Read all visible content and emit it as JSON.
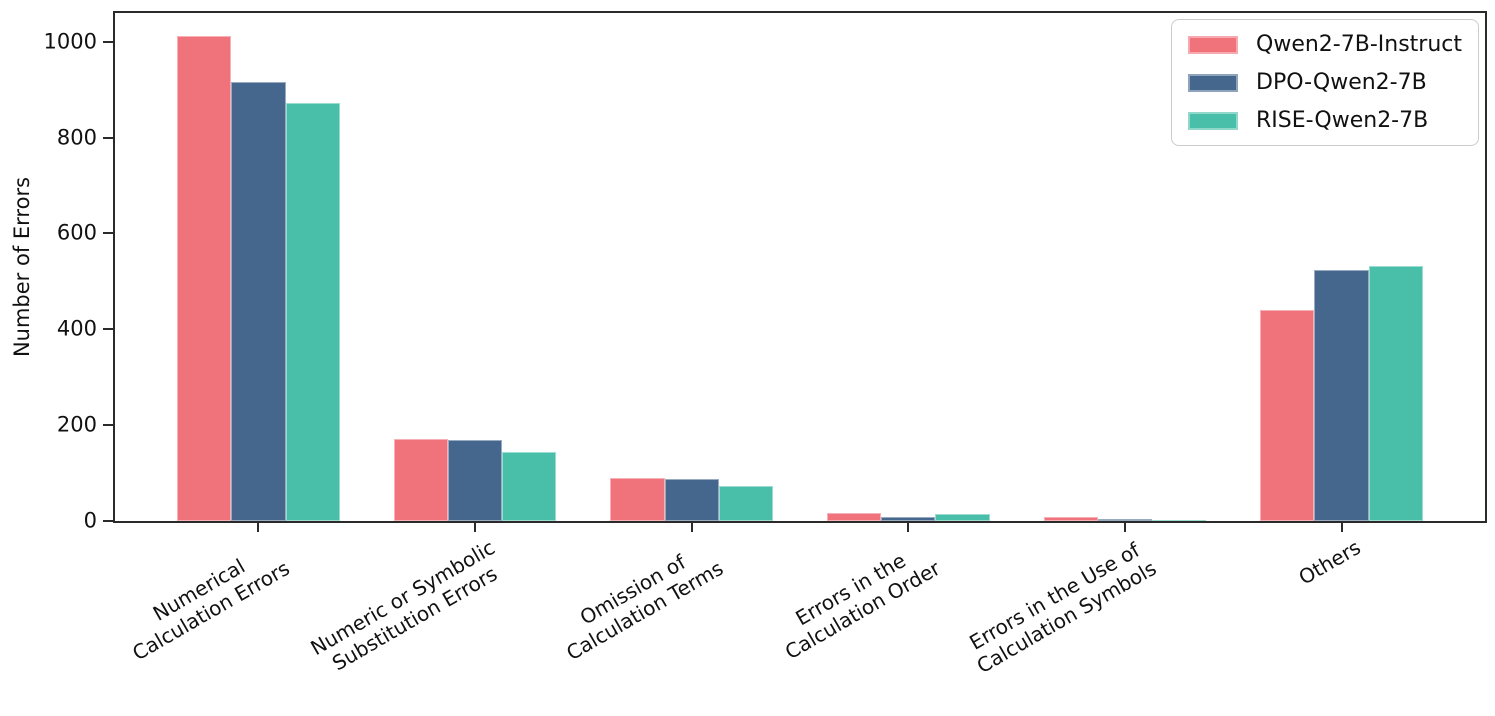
{
  "figure": {
    "background": "#ffffff",
    "axis_color": "#2a2a2a",
    "text_color": "#111111"
  },
  "legend": {
    "position": "upper-right",
    "items": [
      {
        "label": "Qwen2-7B-Instruct",
        "color": "#f0727b",
        "swatch_name": "qwen2-7b-instruct-swatch"
      },
      {
        "label": "DPO-Qwen2-7B",
        "color": "#45678e",
        "swatch_name": "dpo-qwen2-7b-swatch"
      },
      {
        "label": "RISE-Qwen2-7B",
        "color": "#49bfa9",
        "swatch_name": "rise-qwen2-7b-swatch"
      }
    ]
  },
  "chart_data": {
    "type": "bar",
    "title": "",
    "xlabel": "",
    "ylabel": "Number of Errors",
    "categories": [
      "Numerical\nCalculation Errors",
      "Numeric or Symbolic\nSubstitution Errors",
      "Omission of\nCalculation Terms",
      "Errors in the\nCalculation Order",
      "Errors in the Use of\nCalculation Symbols",
      "Others"
    ],
    "series": [
      {
        "name": "Qwen2-7B-Instruct",
        "color": "#f0727b",
        "values": [
          1013,
          171,
          90,
          16,
          9,
          441
        ]
      },
      {
        "name": "DPO-Qwen2-7B",
        "color": "#45678e",
        "values": [
          917,
          168,
          87,
          8,
          4,
          523
        ]
      },
      {
        "name": "RISE-Qwen2-7B",
        "color": "#49bfa9",
        "values": [
          872,
          144,
          73,
          15,
          2,
          532
        ]
      }
    ],
    "yticks": [
      0,
      200,
      400,
      600,
      800,
      1000
    ],
    "ylim": [
      0,
      1060
    ],
    "xlim_units": [
      -0.6625,
      5.6625
    ],
    "bar_width_units": 0.25,
    "grid": false,
    "legend_position": "upper right",
    "x_label_rotation_deg": 30
  }
}
